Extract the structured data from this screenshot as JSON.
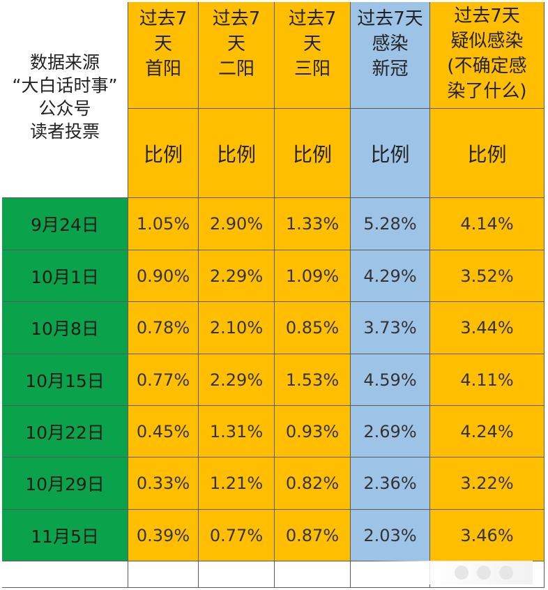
{
  "header": {
    "source_lines": [
      "数据来源",
      "“大白话时事”",
      "公众号",
      "读者投票"
    ],
    "columns": [
      {
        "lines": [
          "过去7",
          "天",
          "首阳"
        ],
        "color": "#ffbf00"
      },
      {
        "lines": [
          "过去7",
          "天",
          "二阳"
        ],
        "color": "#ffbf00"
      },
      {
        "lines": [
          "过去7",
          "天",
          "三阳"
        ],
        "color": "#ffbf00"
      },
      {
        "lines": [
          "过去7天",
          "感染",
          "新冠"
        ],
        "color": "#9dc3e6"
      },
      {
        "lines": [
          "过去7天",
          "疑似感染",
          "(不确定感",
          "染了什么)"
        ],
        "color": "#ffbf00"
      }
    ],
    "unit_label": "比例"
  },
  "rows": [
    {
      "date": "9月24日",
      "values": [
        "1.05%",
        "2.90%",
        "1.33%",
        "5.28%",
        "4.14%"
      ]
    },
    {
      "date": "10月1日",
      "values": [
        "0.90%",
        "2.29%",
        "1.09%",
        "4.29%",
        "3.52%"
      ]
    },
    {
      "date": "10月8日",
      "values": [
        "0.78%",
        "2.10%",
        "0.85%",
        "3.73%",
        "3.44%"
      ]
    },
    {
      "date": "10月15日",
      "values": [
        "0.77%",
        "2.29%",
        "1.53%",
        "4.59%",
        "4.11%"
      ]
    },
    {
      "date": "10月22日",
      "values": [
        "0.45%",
        "1.31%",
        "0.93%",
        "2.69%",
        "4.24%"
      ]
    },
    {
      "date": "10月29日",
      "values": [
        "0.33%",
        "1.21%",
        "0.82%",
        "2.36%",
        "3.22%"
      ]
    },
    {
      "date": "11月5日",
      "values": [
        "0.39%",
        "0.77%",
        "0.87%",
        "2.03%",
        "3.46%"
      ]
    }
  ],
  "colors": {
    "orange": "#ffbf00",
    "blue": "#9dc3e6",
    "green": "#0aa24a",
    "grid": "#5a5a5a"
  }
}
